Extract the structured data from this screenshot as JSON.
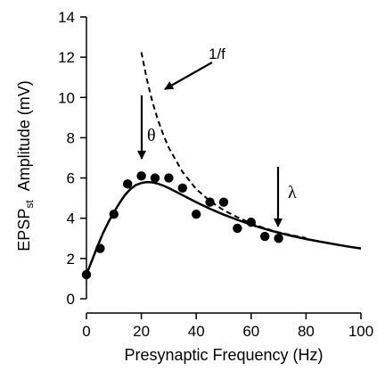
{
  "chart_data": {
    "type": "scatter",
    "title": "",
    "xlabel": "Presynaptic Frequency (Hz)",
    "ylabel": {
      "main": "EPSP",
      "subscript": "st",
      "rest": "Amplitude (mV)"
    },
    "xlim": [
      0,
      100
    ],
    "ylim": [
      0,
      14
    ],
    "x_ticks": [
      0,
      20,
      40,
      60,
      80,
      100
    ],
    "y_ticks": [
      0,
      2,
      4,
      6,
      8,
      10,
      12,
      14
    ],
    "grid": false,
    "series": [
      {
        "kind": "points",
        "x": [
          0,
          5,
          10,
          15,
          20,
          25,
          30,
          35,
          40,
          45,
          50,
          55,
          60,
          65,
          70
        ],
        "y": [
          1.2,
          2.5,
          4.2,
          5.7,
          6.1,
          6.0,
          6.0,
          5.5,
          4.2,
          4.8,
          4.8,
          3.5,
          3.8,
          3.1,
          3.0
        ]
      },
      {
        "kind": "fit",
        "style": "solid",
        "x": [
          0,
          2,
          4,
          6,
          8,
          10,
          12,
          14,
          16,
          18,
          20,
          22,
          24,
          26,
          28,
          30,
          35,
          40,
          45,
          50,
          55,
          60,
          65,
          70,
          75,
          80,
          85,
          90,
          95,
          100
        ],
        "y": [
          1.2,
          1.9,
          2.6,
          3.25,
          3.8,
          4.3,
          4.75,
          5.15,
          5.45,
          5.65,
          5.75,
          5.8,
          5.78,
          5.72,
          5.62,
          5.5,
          5.15,
          4.8,
          4.47,
          4.18,
          3.92,
          3.68,
          3.47,
          3.28,
          3.12,
          2.97,
          2.84,
          2.72,
          2.6,
          2.5
        ]
      },
      {
        "kind": "1/f",
        "style": "dashed",
        "x": [
          20,
          22,
          24,
          26,
          28,
          30,
          35,
          40,
          45,
          50,
          55,
          60,
          65,
          70,
          75,
          80
        ],
        "y": [
          12.25,
          10.9,
          9.8,
          8.9,
          8.15,
          7.5,
          6.3,
          5.45,
          4.85,
          4.4,
          4.05,
          3.75,
          3.5,
          3.3,
          3.15,
          3.02
        ]
      }
    ],
    "annotations": [
      {
        "text": "1/f",
        "style": "plain"
      },
      {
        "text": "θ",
        "style": "serif"
      },
      {
        "text": "λ",
        "style": "serif"
      }
    ]
  }
}
